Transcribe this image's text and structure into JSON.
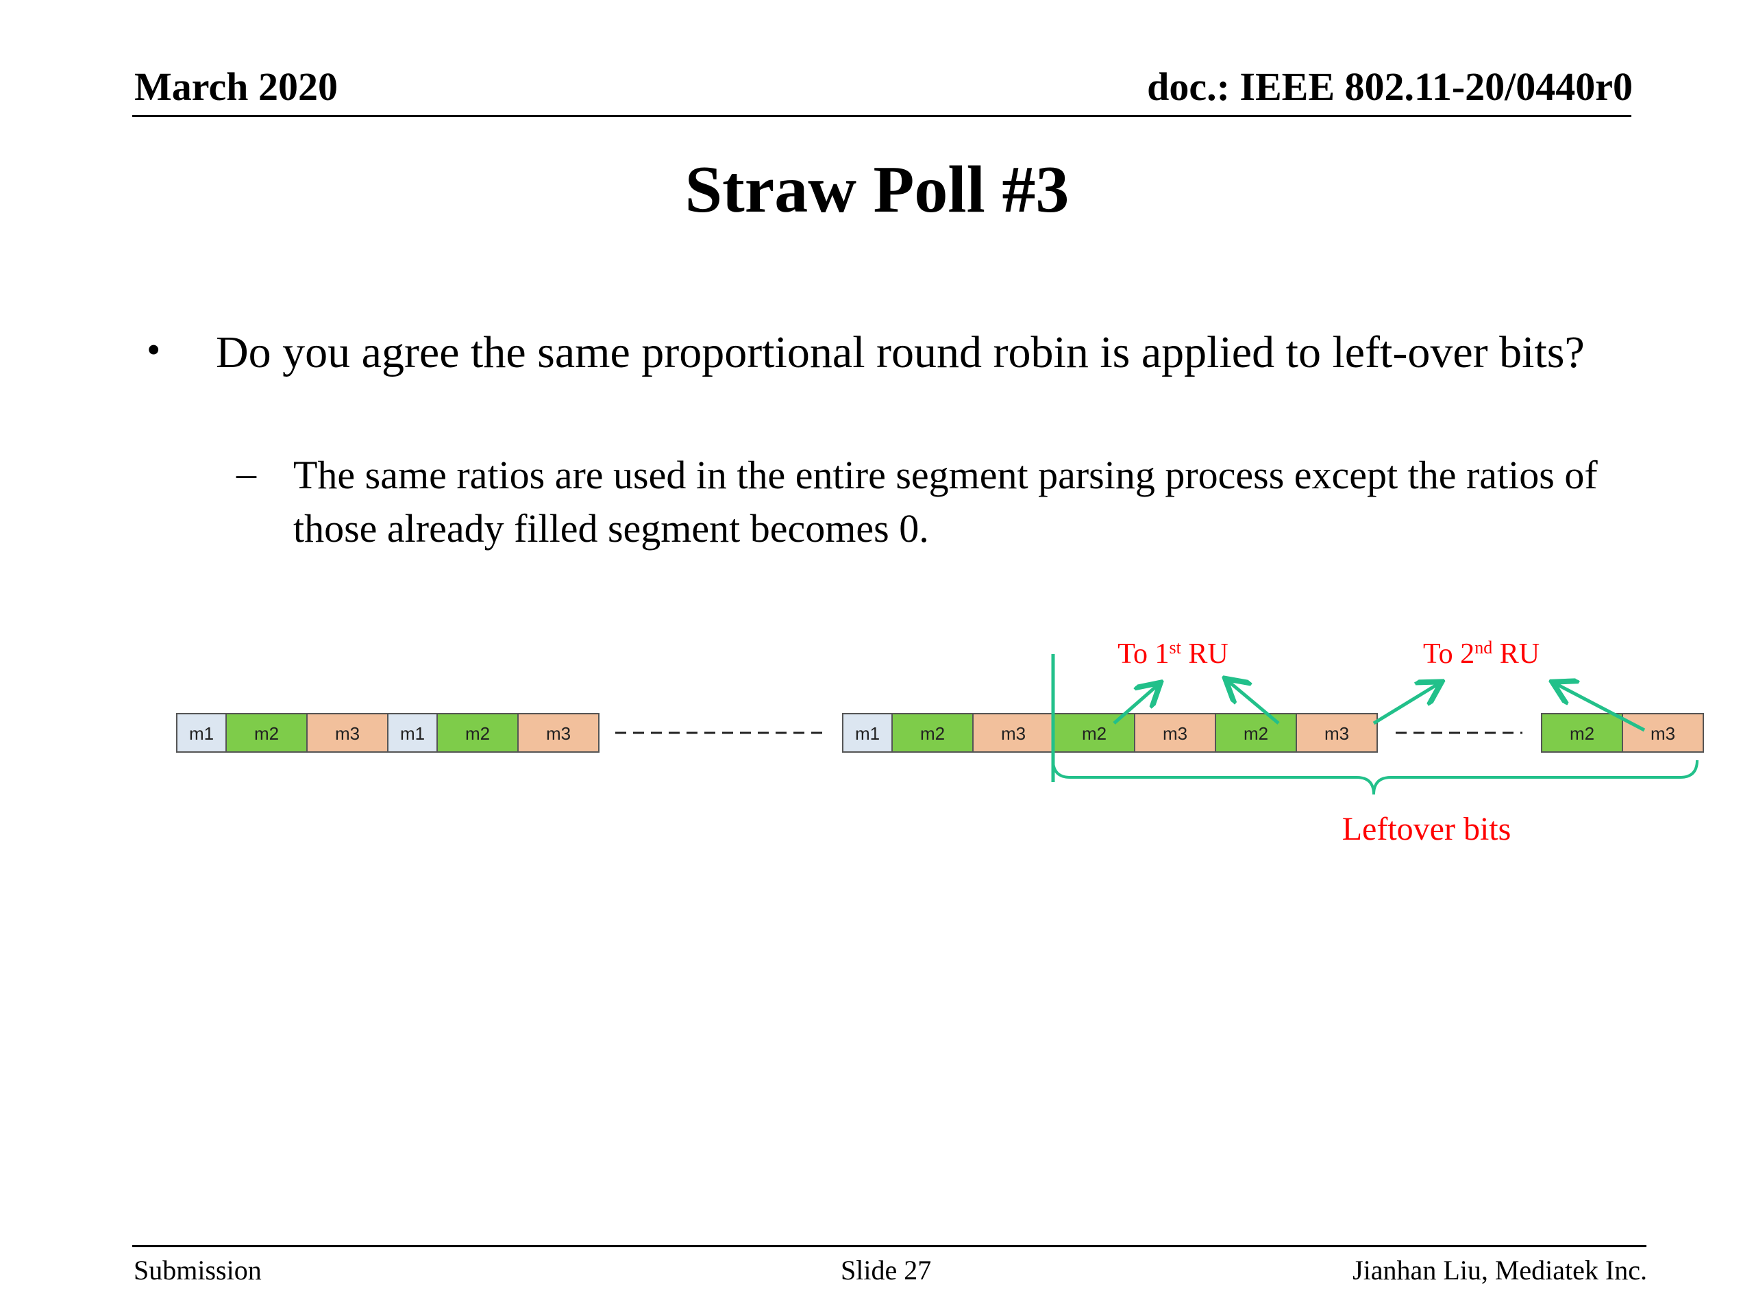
{
  "header": {
    "date": "March 2020",
    "doc": "doc.: IEEE 802.11-20/0440r0"
  },
  "title": "Straw Poll #3",
  "bullet": {
    "text": "Do you agree the same proportional round robin is applied to left-over bits?",
    "sub": "The same ratios are used in the entire segment parsing process except the ratios of those already filled segment becomes 0."
  },
  "diagram": {
    "colors": {
      "m1": "#dce6f1",
      "m2": "#7ecc4a",
      "m3": "#f2c09c",
      "arrow": "#22c08a",
      "label": "#ff0000"
    },
    "segment_labels": [
      "m1",
      "m2",
      "m3"
    ],
    "to_first_ru": {
      "pre": "To 1",
      "sup": "st",
      "post": " RU"
    },
    "to_second_ru": {
      "pre": "To 2",
      "sup": "nd",
      "post": " RU"
    },
    "leftover_label": "Leftover bits"
  },
  "footer": {
    "left": "Submission",
    "center": "Slide 27",
    "right": "Jianhan Liu, Mediatek Inc."
  }
}
